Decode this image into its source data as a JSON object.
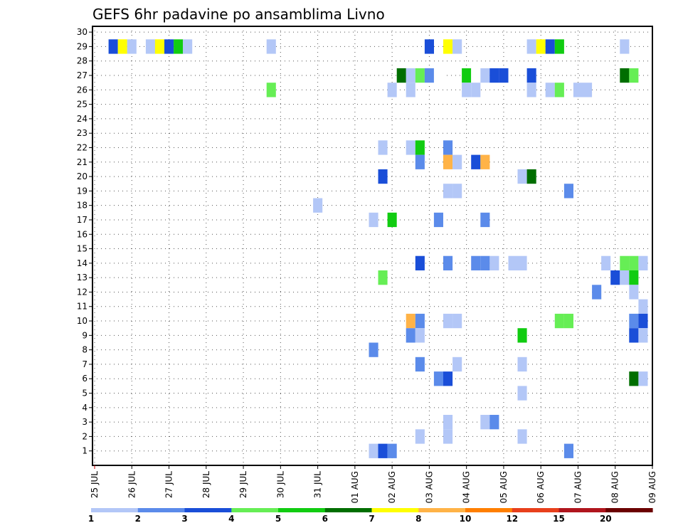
{
  "chart_data": {
    "type": "heatmap",
    "title": "GEFS 6hr padavine po ansamblima Livno",
    "x_tick_labels": [
      "25 JUL",
      "26 JUL",
      "27 JUL",
      "28 JUL",
      "29 JUL",
      "30 JUL",
      "31 JUL",
      "01 AUG",
      "02 AUG",
      "03 AUG",
      "04 AUG",
      "05 AUG",
      "06 AUG",
      "07 AUG",
      "08 AUG",
      "09 AUG"
    ],
    "y_tick_labels": [
      "1",
      "2",
      "3",
      "4",
      "5",
      "6",
      "7",
      "8",
      "9",
      "10",
      "11",
      "12",
      "13",
      "14",
      "15",
      "16",
      "17",
      "18",
      "19",
      "20",
      "21",
      "22",
      "23",
      "24",
      "25",
      "26",
      "27",
      "28",
      "29",
      "30"
    ],
    "x_range_days": [
      0,
      15
    ],
    "y_range": [
      0,
      30
    ],
    "grid": true,
    "colorbar": {
      "labels": [
        "1",
        "2",
        "3",
        "4",
        "5",
        "6",
        "7",
        "8",
        "10",
        "12",
        "15",
        "20"
      ],
      "colors": [
        "#b3c7f7",
        "#5b8bea",
        "#1a4ed8",
        "#66ee55",
        "#11cc11",
        "#006e00",
        "#ffff00",
        "#ffb347",
        "#ff7f00",
        "#e8401c",
        "#b0151d",
        "#6b0000"
      ]
    },
    "cells": [
      {
        "day": 0.5,
        "member": 29,
        "color": "#1a4ed8"
      },
      {
        "day": 0.75,
        "member": 29,
        "color": "#ffff00"
      },
      {
        "day": 1.0,
        "member": 29,
        "color": "#b3c7f7"
      },
      {
        "day": 1.5,
        "member": 29,
        "color": "#b3c7f7"
      },
      {
        "day": 1.75,
        "member": 29,
        "color": "#ffff00"
      },
      {
        "day": 2.0,
        "member": 29,
        "color": "#1a4ed8"
      },
      {
        "day": 2.25,
        "member": 29,
        "color": "#11cc11"
      },
      {
        "day": 2.5,
        "member": 29,
        "color": "#b3c7f7"
      },
      {
        "day": 4.75,
        "member": 29,
        "color": "#b3c7f7"
      },
      {
        "day": 9.0,
        "member": 29,
        "color": "#1a4ed8"
      },
      {
        "day": 9.5,
        "member": 29,
        "color": "#ffff00"
      },
      {
        "day": 9.75,
        "member": 29,
        "color": "#b3c7f7"
      },
      {
        "day": 11.75,
        "member": 29,
        "color": "#b3c7f7"
      },
      {
        "day": 12.0,
        "member": 29,
        "color": "#ffff00"
      },
      {
        "day": 12.25,
        "member": 29,
        "color": "#1a4ed8"
      },
      {
        "day": 12.5,
        "member": 29,
        "color": "#11cc11"
      },
      {
        "day": 14.25,
        "member": 29,
        "color": "#b3c7f7"
      },
      {
        "day": 8.25,
        "member": 27,
        "color": "#006e00"
      },
      {
        "day": 8.5,
        "member": 27,
        "color": "#b3c7f7"
      },
      {
        "day": 8.75,
        "member": 27,
        "color": "#66ee55"
      },
      {
        "day": 9.0,
        "member": 27,
        "color": "#5b8bea"
      },
      {
        "day": 9.25,
        "member": 27,
        "color": "#ffffff"
      },
      {
        "day": 10.0,
        "member": 27,
        "color": "#11cc11"
      },
      {
        "day": 10.25,
        "member": 27,
        "color": "#ffffff"
      },
      {
        "day": 10.5,
        "member": 27,
        "color": "#b3c7f7"
      },
      {
        "day": 10.75,
        "member": 27,
        "color": "#1a4ed8"
      },
      {
        "day": 11.0,
        "member": 27,
        "color": "#1a4ed8"
      },
      {
        "day": 11.75,
        "member": 27,
        "color": "#1a4ed8"
      },
      {
        "day": 14.25,
        "member": 27,
        "color": "#006e00"
      },
      {
        "day": 14.5,
        "member": 27,
        "color": "#66ee55"
      },
      {
        "day": 4.75,
        "member": 26,
        "color": "#66ee55"
      },
      {
        "day": 8.0,
        "member": 26,
        "color": "#b3c7f7"
      },
      {
        "day": 8.5,
        "member": 26,
        "color": "#b3c7f7"
      },
      {
        "day": 10.0,
        "member": 26,
        "color": "#b3c7f7"
      },
      {
        "day": 10.25,
        "member": 26,
        "color": "#b3c7f7"
      },
      {
        "day": 11.75,
        "member": 26,
        "color": "#b3c7f7"
      },
      {
        "day": 12.25,
        "member": 26,
        "color": "#b3c7f7"
      },
      {
        "day": 12.5,
        "member": 26,
        "color": "#66ee55"
      },
      {
        "day": 13.0,
        "member": 26,
        "color": "#b3c7f7"
      },
      {
        "day": 13.25,
        "member": 26,
        "color": "#b3c7f7"
      },
      {
        "day": 7.75,
        "member": 22,
        "color": "#b3c7f7"
      },
      {
        "day": 8.5,
        "member": 22,
        "color": "#b3c7f7"
      },
      {
        "day": 8.75,
        "member": 22,
        "color": "#11cc11"
      },
      {
        "day": 9.5,
        "member": 22,
        "color": "#5b8bea"
      },
      {
        "day": 8.75,
        "member": 21,
        "color": "#5b8bea"
      },
      {
        "day": 9.5,
        "member": 21,
        "color": "#ffb347"
      },
      {
        "day": 9.75,
        "member": 21,
        "color": "#b3c7f7"
      },
      {
        "day": 10.25,
        "member": 21,
        "color": "#1a4ed8"
      },
      {
        "day": 10.5,
        "member": 21,
        "color": "#ffb347"
      },
      {
        "day": 7.75,
        "member": 20,
        "color": "#1a4ed8"
      },
      {
        "day": 11.5,
        "member": 20,
        "color": "#b3c7f7"
      },
      {
        "day": 11.75,
        "member": 20,
        "color": "#006e00"
      },
      {
        "day": 9.5,
        "member": 19,
        "color": "#b3c7f7"
      },
      {
        "day": 9.75,
        "member": 19,
        "color": "#b3c7f7"
      },
      {
        "day": 12.75,
        "member": 19,
        "color": "#5b8bea"
      },
      {
        "day": 6.0,
        "member": 18,
        "color": "#b3c7f7"
      },
      {
        "day": 7.5,
        "member": 17,
        "color": "#b3c7f7"
      },
      {
        "day": 8.0,
        "member": 17,
        "color": "#11cc11"
      },
      {
        "day": 9.25,
        "member": 17,
        "color": "#5b8bea"
      },
      {
        "day": 10.5,
        "member": 17,
        "color": "#5b8bea"
      },
      {
        "day": 8.75,
        "member": 14,
        "color": "#1a4ed8"
      },
      {
        "day": 9.5,
        "member": 14,
        "color": "#5b8bea"
      },
      {
        "day": 10.25,
        "member": 14,
        "color": "#5b8bea"
      },
      {
        "day": 10.5,
        "member": 14,
        "color": "#5b8bea"
      },
      {
        "day": 10.75,
        "member": 14,
        "color": "#b3c7f7"
      },
      {
        "day": 11.25,
        "member": 14,
        "color": "#b3c7f7"
      },
      {
        "day": 11.5,
        "member": 14,
        "color": "#b3c7f7"
      },
      {
        "day": 13.75,
        "member": 14,
        "color": "#b3c7f7"
      },
      {
        "day": 14.25,
        "member": 14,
        "color": "#66ee55"
      },
      {
        "day": 14.5,
        "member": 14,
        "color": "#66ee55"
      },
      {
        "day": 14.75,
        "member": 14,
        "color": "#b3c7f7"
      },
      {
        "day": 7.75,
        "member": 13,
        "color": "#66ee55"
      },
      {
        "day": 14.0,
        "member": 13,
        "color": "#1a4ed8"
      },
      {
        "day": 14.25,
        "member": 13,
        "color": "#b3c7f7"
      },
      {
        "day": 14.5,
        "member": 13,
        "color": "#11cc11"
      },
      {
        "day": 13.5,
        "member": 12,
        "color": "#5b8bea"
      },
      {
        "day": 14.5,
        "member": 12,
        "color": "#b3c7f7"
      },
      {
        "day": 14.75,
        "member": 11,
        "color": "#b3c7f7"
      },
      {
        "day": 8.5,
        "member": 10,
        "color": "#ffb347"
      },
      {
        "day": 8.75,
        "member": 10,
        "color": "#5b8bea"
      },
      {
        "day": 9.5,
        "member": 10,
        "color": "#b3c7f7"
      },
      {
        "day": 9.75,
        "member": 10,
        "color": "#b3c7f7"
      },
      {
        "day": 12.5,
        "member": 10,
        "color": "#66ee55"
      },
      {
        "day": 12.75,
        "member": 10,
        "color": "#66ee55"
      },
      {
        "day": 14.5,
        "member": 10,
        "color": "#5b8bea"
      },
      {
        "day": 14.75,
        "member": 10,
        "color": "#1a4ed8"
      },
      {
        "day": 8.5,
        "member": 9,
        "color": "#5b8bea"
      },
      {
        "day": 8.75,
        "member": 9,
        "color": "#b3c7f7"
      },
      {
        "day": 11.5,
        "member": 9,
        "color": "#11cc11"
      },
      {
        "day": 14.5,
        "member": 9,
        "color": "#1a4ed8"
      },
      {
        "day": 14.75,
        "member": 9,
        "color": "#b3c7f7"
      },
      {
        "day": 7.5,
        "member": 8,
        "color": "#5b8bea"
      },
      {
        "day": 8.75,
        "member": 7,
        "color": "#5b8bea"
      },
      {
        "day": 9.75,
        "member": 7,
        "color": "#b3c7f7"
      },
      {
        "day": 11.5,
        "member": 7,
        "color": "#b3c7f7"
      },
      {
        "day": 9.25,
        "member": 6,
        "color": "#5b8bea"
      },
      {
        "day": 9.5,
        "member": 6,
        "color": "#1a4ed8"
      },
      {
        "day": 14.5,
        "member": 6,
        "color": "#006e00"
      },
      {
        "day": 14.75,
        "member": 6,
        "color": "#b3c7f7"
      },
      {
        "day": 11.5,
        "member": 5,
        "color": "#b3c7f7"
      },
      {
        "day": 9.5,
        "member": 3,
        "color": "#b3c7f7"
      },
      {
        "day": 10.5,
        "member": 3,
        "color": "#b3c7f7"
      },
      {
        "day": 10.75,
        "member": 3,
        "color": "#5b8bea"
      },
      {
        "day": 8.75,
        "member": 2,
        "color": "#b3c7f7"
      },
      {
        "day": 9.5,
        "member": 2,
        "color": "#b3c7f7"
      },
      {
        "day": 11.5,
        "member": 2,
        "color": "#b3c7f7"
      },
      {
        "day": 7.5,
        "member": 1,
        "color": "#b3c7f7"
      },
      {
        "day": 7.75,
        "member": 1,
        "color": "#1a4ed8"
      },
      {
        "day": 8.0,
        "member": 1,
        "color": "#5b8bea"
      },
      {
        "day": 12.75,
        "member": 1,
        "color": "#5b8bea"
      }
    ]
  }
}
